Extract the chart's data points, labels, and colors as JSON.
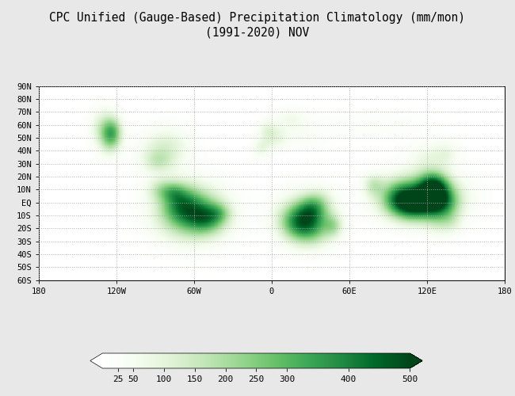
{
  "title_line1": "CPC Unified (Gauge-Based) Precipitation Climatology (mm/mon)",
  "title_line2": "(1991-2020) NOV",
  "title_fontsize": 10.5,
  "colorbar_ticks": [
    25,
    50,
    100,
    150,
    200,
    250,
    300,
    400,
    500
  ],
  "vmin": 0,
  "vmax": 500,
  "background_color": "#e8e8e8",
  "map_bg_color": "#ffffff",
  "lon_ticks": [
    -180,
    -120,
    -60,
    0,
    60,
    120,
    180
  ],
  "lat_ticks": [
    -60,
    -50,
    -40,
    -30,
    -20,
    -10,
    0,
    10,
    20,
    30,
    40,
    50,
    60,
    70,
    80,
    90
  ],
  "lon_labels": [
    "180",
    "120W",
    "60W",
    "0",
    "60E",
    "120E",
    "180"
  ],
  "lat_labels": [
    "60S",
    "50S",
    "40S",
    "30S",
    "20S",
    "10S",
    "EQ",
    "10N",
    "20N",
    "30N",
    "40N",
    "50N",
    "60N",
    "70N",
    "80N",
    "90N"
  ],
  "gridline_color": "#aaaaaa",
  "map_extent": [
    -180,
    180,
    -60,
    90
  ]
}
